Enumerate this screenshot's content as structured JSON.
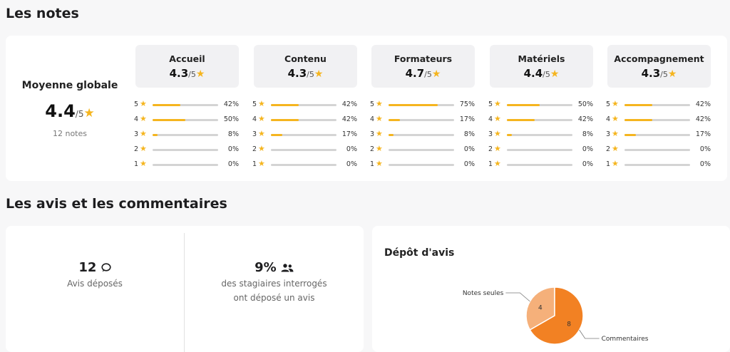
{
  "notes": {
    "title": "Les notes",
    "overall": {
      "label": "Moyenne globale",
      "score": "4.4",
      "out_of": "/5",
      "count": "12 notes"
    },
    "rating_levels": [
      "5",
      "4",
      "3",
      "2",
      "1"
    ],
    "categories": [
      {
        "name": "Accueil",
        "score": "4.3",
        "out_of": "/5",
        "distribution": [
          42,
          50,
          8,
          0,
          0
        ]
      },
      {
        "name": "Contenu",
        "score": "4.3",
        "out_of": "/5",
        "distribution": [
          42,
          42,
          17,
          0,
          0
        ]
      },
      {
        "name": "Formateurs",
        "score": "4.7",
        "out_of": "/5",
        "distribution": [
          75,
          17,
          8,
          0,
          0
        ]
      },
      {
        "name": "Matériels",
        "score": "4.4",
        "out_of": "/5",
        "distribution": [
          50,
          42,
          8,
          0,
          0
        ]
      },
      {
        "name": "Accompagnement",
        "score": "4.3",
        "out_of": "/5",
        "distribution": [
          42,
          42,
          17,
          0,
          0
        ]
      }
    ]
  },
  "avis": {
    "title": "Les avis et les commentaires",
    "count_value": "12",
    "count_label": "Avis déposés",
    "count_icon": "speech-bubble-icon",
    "rate_value": "9%",
    "rate_label_line1": "des stagiaires interrogés",
    "rate_label_line2": "ont déposé un avis",
    "rate_icon": "users-icon"
  },
  "depot": {
    "title": "Dépôt d'avis"
  },
  "chart_data": {
    "type": "pie",
    "title": "Dépôt d'avis",
    "labels": [
      "Notes seules",
      "Commentaires"
    ],
    "values": [
      4,
      8
    ],
    "colors": [
      "#f5b07a",
      "#f28123"
    ]
  },
  "colors": {
    "star": "#f5b51f",
    "bar_fill": "#f5b51f",
    "bar_track": "#d4d4d4"
  }
}
